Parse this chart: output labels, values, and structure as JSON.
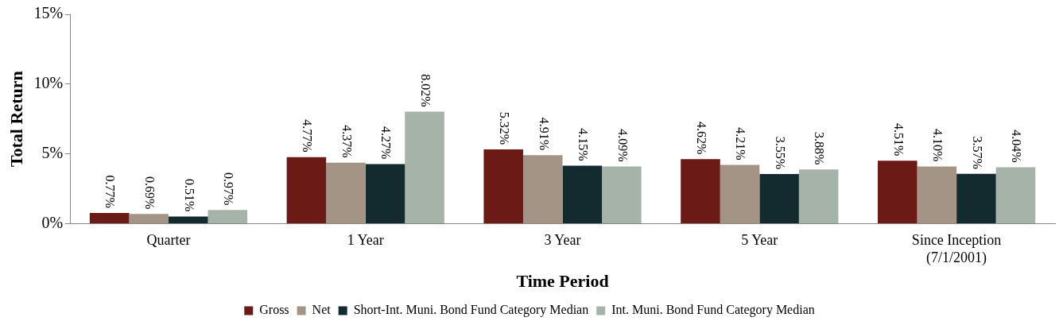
{
  "chart_data": {
    "type": "bar",
    "xlabel": "Time Period",
    "ylabel": "Total Return",
    "categories": [
      "Quarter",
      "1 Year",
      "3 Year",
      "5 Year",
      "Since Inception\n(7/1/2001)"
    ],
    "series": [
      {
        "name": "Gross",
        "color": "#6b1a16",
        "values": [
          0.77,
          4.77,
          5.32,
          4.62,
          4.51
        ],
        "value_labels": [
          "0.77%",
          "4.77%",
          "5.32%",
          "4.62%",
          "4.51%"
        ]
      },
      {
        "name": "Net",
        "color": "#a39485",
        "values": [
          0.69,
          4.37,
          4.91,
          4.21,
          4.1
        ],
        "value_labels": [
          "0.69%",
          "4.37%",
          "4.91%",
          "4.21%",
          "4.10%"
        ]
      },
      {
        "name": "Short-Int. Muni. Bond Fund Category Median",
        "color": "#132b2f",
        "values": [
          0.51,
          4.27,
          4.15,
          3.55,
          3.57
        ],
        "value_labels": [
          "0.51%",
          "4.27%",
          "4.15%",
          "3.55%",
          "3.57%"
        ]
      },
      {
        "name": "Int. Muni. Bond Fund Category Median",
        "color": "#a6b3a9",
        "values": [
          0.97,
          8.02,
          4.09,
          3.88,
          4.04
        ],
        "value_labels": [
          "0.97%",
          "8.02%",
          "4.09%",
          "3.88%",
          "4.04%"
        ]
      }
    ],
    "ylim": [
      0,
      15
    ],
    "yticks": [
      {
        "value": 0,
        "label": "0%"
      },
      {
        "value": 5,
        "label": "5%"
      },
      {
        "value": 10,
        "label": "10%"
      },
      {
        "value": 15,
        "label": "15%"
      }
    ],
    "grid": false,
    "legend": "bottom"
  }
}
